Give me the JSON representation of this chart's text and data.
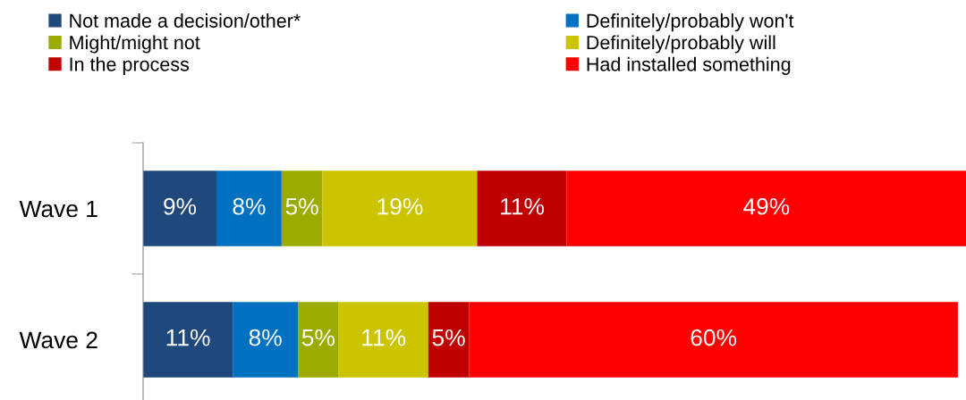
{
  "chart_data": {
    "type": "bar",
    "orientation": "horizontal",
    "stacked": true,
    "legend": "top",
    "grid": false,
    "tick_labels": "y",
    "categories": [
      "Wave 1",
      "Wave 2"
    ],
    "series": [
      {
        "name": "Not made a decision/other*",
        "color": "#1f497d",
        "values": [
          9,
          11
        ],
        "value_labels": [
          "9%",
          "11%"
        ]
      },
      {
        "name": "Definitely/probably won't",
        "color": "#0070c0",
        "values": [
          8,
          8
        ],
        "value_labels": [
          "8%",
          "8%"
        ]
      },
      {
        "name": "Might/might not",
        "color": "#9bab00",
        "values": [
          5,
          5
        ],
        "value_labels": [
          "5%",
          "5%"
        ]
      },
      {
        "name": "Definitely/probably will",
        "color": "#cdc400",
        "values": [
          19,
          11
        ],
        "value_labels": [
          "19%",
          "11%"
        ]
      },
      {
        "name": "In the process",
        "color": "#c00000",
        "values": [
          11,
          5
        ],
        "value_labels": [
          "11%",
          "5%"
        ]
      },
      {
        "name": "Had installed something",
        "color": "#ff0000",
        "values": [
          49,
          60
        ],
        "value_labels": [
          "49%",
          "60%"
        ]
      }
    ]
  }
}
